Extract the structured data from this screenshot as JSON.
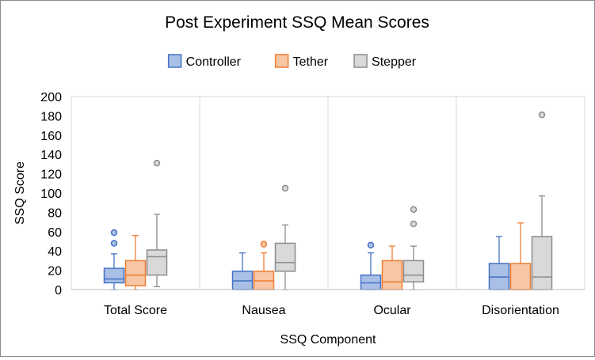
{
  "chart_data": {
    "type": "box",
    "title": "Post Experiment SSQ Mean Scores",
    "xlabel": "SSQ Component",
    "ylabel": "SSQ Score",
    "ylim": [
      0,
      200
    ],
    "yticks": [
      0,
      20,
      40,
      60,
      80,
      100,
      120,
      140,
      160,
      180,
      200
    ],
    "categories": [
      "Total Score",
      "Nausea",
      "Ocular",
      "Disorientation"
    ],
    "legend_position": "top-center",
    "series": [
      {
        "name": "Controller",
        "fill": "#a9bfe6",
        "stroke": "#4472c4",
        "boxes": [
          {
            "min": 0,
            "q1": 7,
            "median": 11,
            "q3": 22,
            "max": 37,
            "outliers": [
              48,
              59
            ]
          },
          {
            "min": 0,
            "q1": 0,
            "median": 9,
            "q3": 19,
            "max": 38,
            "outliers": []
          },
          {
            "min": 0,
            "q1": 0,
            "median": 7,
            "q3": 15,
            "max": 38,
            "outliers": [
              46
            ]
          },
          {
            "min": 0,
            "q1": 0,
            "median": 13,
            "q3": 27,
            "max": 55,
            "outliers": []
          }
        ]
      },
      {
        "name": "Tether",
        "fill": "#f8c6a4",
        "stroke": "#ed7d31",
        "boxes": [
          {
            "min": 0,
            "q1": 4,
            "median": 15,
            "q3": 30,
            "max": 56,
            "outliers": []
          },
          {
            "min": 0,
            "q1": 0,
            "median": 9,
            "q3": 19,
            "max": 38,
            "outliers": [
              47
            ]
          },
          {
            "min": 0,
            "q1": 0,
            "median": 8,
            "q3": 30,
            "max": 45,
            "outliers": []
          },
          {
            "min": 0,
            "q1": 0,
            "median": 0,
            "q3": 27,
            "max": 69,
            "outliers": []
          }
        ]
      },
      {
        "name": "Stepper",
        "fill": "#d9d9d9",
        "stroke": "#8c8c8c",
        "boxes": [
          {
            "min": 3,
            "q1": 15,
            "median": 34,
            "q3": 41,
            "max": 78,
            "outliers": [
              131
            ]
          },
          {
            "min": 0,
            "q1": 19,
            "median": 28,
            "q3": 48,
            "max": 67,
            "outliers": [
              105
            ]
          },
          {
            "min": 0,
            "q1": 8,
            "median": 15,
            "q3": 30,
            "max": 45,
            "outliers": [
              68,
              83
            ]
          },
          {
            "min": 0,
            "q1": 0,
            "median": 13,
            "q3": 55,
            "max": 97,
            "outliers": [
              181
            ]
          }
        ]
      }
    ]
  }
}
